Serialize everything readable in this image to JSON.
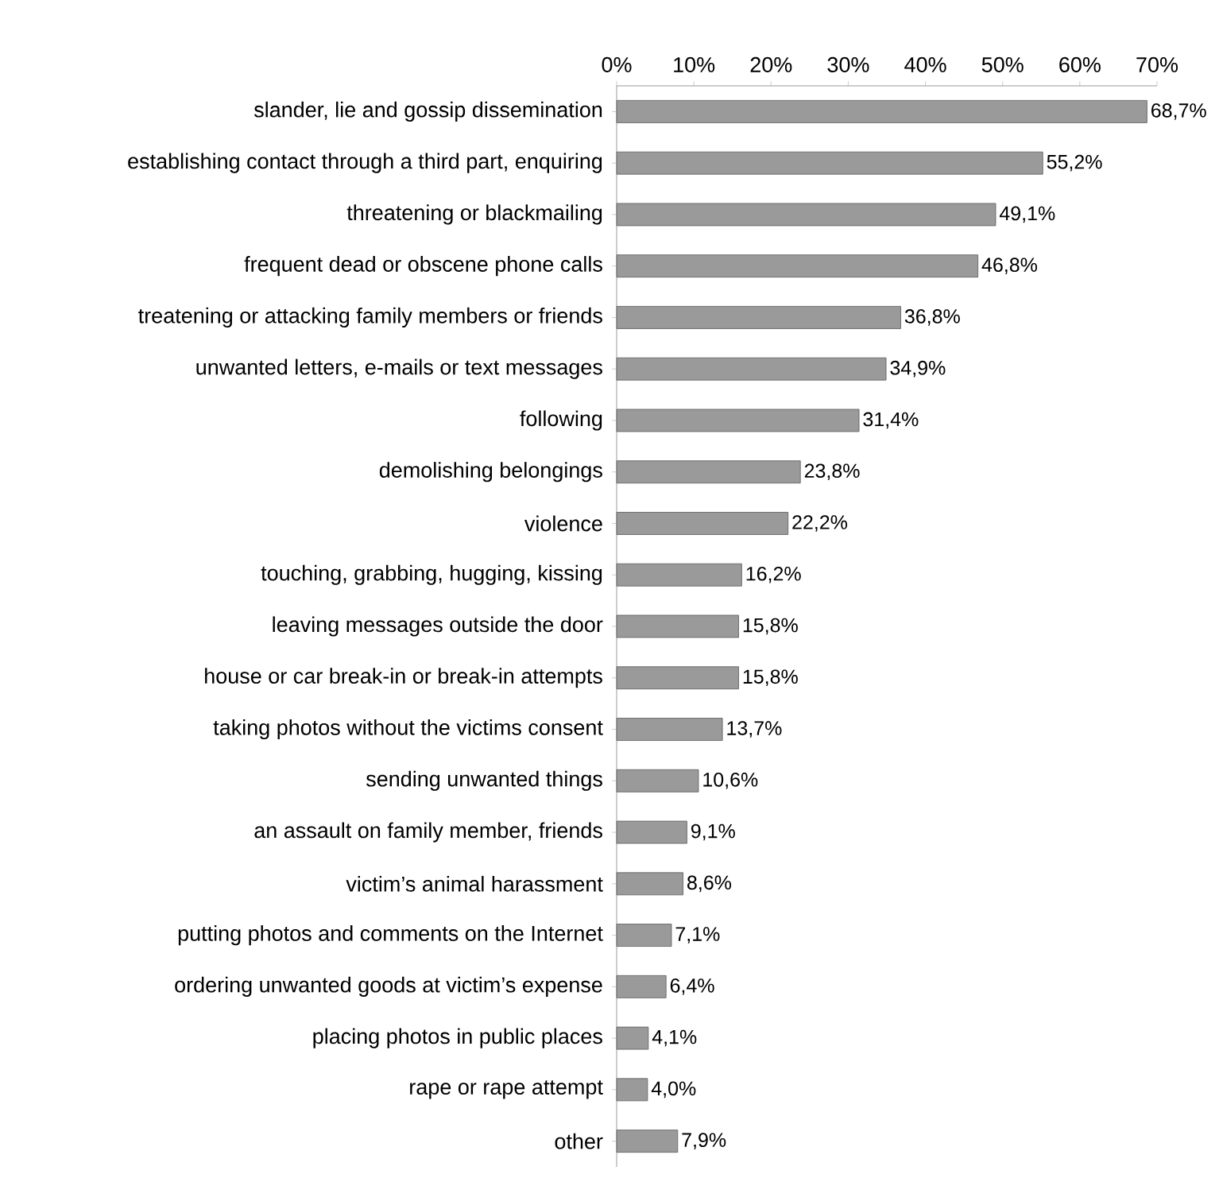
{
  "chart_data": {
    "type": "bar",
    "orientation": "horizontal",
    "color": "#9a9a9a",
    "categories": [
      "slander, lie and gossip dissemination",
      "establishing contact through a third part, enquiring",
      "threatening or blackmailing",
      "frequent dead or obscene phone calls",
      "treatening or attacking family members or friends",
      "unwanted letters, e-mails or text messages",
      "following",
      "demolishing belongings",
      "violence",
      "touching, grabbing, hugging, kissing",
      "leaving messages outside the door",
      "house or car break-in or break-in attempts",
      "taking photos without the victims consent",
      "sending unwanted things",
      "an assault on family member, friends",
      "victim’s animal harassment",
      "putting photos and comments on the Internet",
      "ordering unwanted goods at victim’s expense",
      "placing photos in public places",
      "rape or rape attempt",
      "other"
    ],
    "values": [
      68.7,
      55.2,
      49.1,
      46.8,
      36.8,
      34.9,
      31.4,
      23.8,
      22.2,
      16.2,
      15.8,
      15.8,
      13.7,
      10.6,
      9.1,
      8.6,
      7.1,
      6.4,
      4.1,
      4.0,
      7.9
    ],
    "value_labels": [
      "68,7%",
      "55,2%",
      "49,1%",
      "46,8%",
      "36,8%",
      "34,9%",
      "31,4%",
      "23,8%",
      "22,2%",
      "16,2%",
      "15,8%",
      "15,8%",
      "13,7%",
      "10,6%",
      "9,1%",
      "8,6%",
      "7,1%",
      "6,4%",
      "4,1%",
      "4,0%",
      "7,9%"
    ],
    "xlim": [
      0,
      70
    ],
    "xticks": [
      {
        "value": 0,
        "label": "0%"
      },
      {
        "value": 10,
        "label": "10%"
      },
      {
        "value": 20,
        "label": "20%"
      },
      {
        "value": 30,
        "label": "30%"
      },
      {
        "value": 40,
        "label": "40%"
      },
      {
        "value": 50,
        "label": "50%"
      },
      {
        "value": 60,
        "label": "60%"
      },
      {
        "value": 70,
        "label": "70%"
      }
    ],
    "grid": false
  }
}
